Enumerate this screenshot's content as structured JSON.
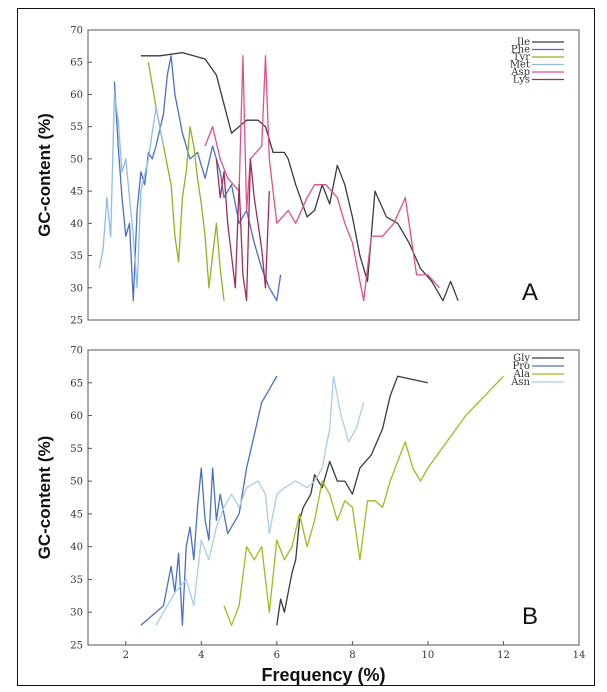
{
  "chart_data": [
    {
      "type": "line",
      "panel_label": "A",
      "ylabel": "GC-content (%)",
      "xlim": [
        1,
        14
      ],
      "ylim": [
        25,
        70
      ],
      "yticks": [
        25,
        30,
        35,
        40,
        45,
        50,
        55,
        60,
        65,
        70
      ],
      "legend_position": "top-right",
      "series": [
        {
          "name": "Ile",
          "color": "#3a3a3a",
          "points": [
            [
              2.4,
              66
            ],
            [
              2.9,
              66
            ],
            [
              3.5,
              66.5
            ],
            [
              4.1,
              65.5
            ],
            [
              4.4,
              63
            ],
            [
              4.8,
              54
            ],
            [
              5.2,
              56
            ],
            [
              5.5,
              56
            ],
            [
              5.7,
              55
            ],
            [
              5.9,
              51
            ],
            [
              6.2,
              51
            ],
            [
              6.3,
              50
            ],
            [
              6.5,
              46
            ],
            [
              6.8,
              41
            ],
            [
              7.0,
              42
            ],
            [
              7.2,
              46
            ],
            [
              7.4,
              43
            ],
            [
              7.6,
              49
            ],
            [
              7.8,
              46
            ],
            [
              8.0,
              41
            ],
            [
              8.2,
              35
            ],
            [
              8.4,
              31
            ],
            [
              8.6,
              45
            ],
            [
              8.9,
              41
            ],
            [
              9.2,
              40
            ],
            [
              9.5,
              37
            ],
            [
              9.8,
              33
            ],
            [
              10.1,
              31
            ],
            [
              10.4,
              28
            ],
            [
              10.6,
              31
            ],
            [
              10.8,
              28
            ]
          ]
        },
        {
          "name": "Phe",
          "color": "#4a6fc7",
          "points": [
            [
              1.7,
              62
            ],
            [
              1.8,
              52
            ],
            [
              1.9,
              44
            ],
            [
              2.0,
              38
            ],
            [
              2.1,
              40
            ],
            [
              2.2,
              28
            ],
            [
              2.3,
              42
            ],
            [
              2.4,
              48
            ],
            [
              2.5,
              46
            ],
            [
              2.6,
              51
            ],
            [
              2.7,
              50
            ],
            [
              2.8,
              52
            ],
            [
              3.0,
              57
            ],
            [
              3.1,
              63
            ],
            [
              3.2,
              66
            ],
            [
              3.3,
              60
            ],
            [
              3.5,
              54
            ],
            [
              3.7,
              50
            ],
            [
              3.9,
              51
            ],
            [
              4.1,
              47
            ],
            [
              4.3,
              52
            ],
            [
              4.5,
              48
            ],
            [
              4.6,
              44
            ],
            [
              4.8,
              46
            ],
            [
              5.0,
              40
            ],
            [
              5.2,
              42
            ],
            [
              5.4,
              37
            ],
            [
              5.6,
              33
            ],
            [
              5.8,
              30
            ],
            [
              6.0,
              28
            ],
            [
              6.1,
              32
            ]
          ]
        },
        {
          "name": "Tyr",
          "color": "#8db51f",
          "points": [
            [
              2.6,
              65
            ],
            [
              2.8,
              58
            ],
            [
              3.0,
              52
            ],
            [
              3.2,
              46
            ],
            [
              3.3,
              38
            ],
            [
              3.4,
              34
            ],
            [
              3.5,
              44
            ],
            [
              3.6,
              48
            ],
            [
              3.7,
              55
            ],
            [
              3.8,
              52
            ],
            [
              3.9,
              47
            ],
            [
              4.0,
              43
            ],
            [
              4.1,
              38
            ],
            [
              4.2,
              30
            ],
            [
              4.3,
              35
            ],
            [
              4.4,
              40
            ],
            [
              4.5,
              33
            ],
            [
              4.6,
              28
            ]
          ]
        },
        {
          "name": "Met",
          "color": "#8fbde8",
          "points": [
            [
              1.3,
              33
            ],
            [
              1.4,
              36
            ],
            [
              1.5,
              44
            ],
            [
              1.6,
              38
            ],
            [
              1.7,
              60
            ],
            [
              1.8,
              56
            ],
            [
              1.9,
              48
            ],
            [
              2.0,
              50
            ],
            [
              2.1,
              44
            ],
            [
              2.2,
              38
            ],
            [
              2.3,
              30
            ],
            [
              2.4,
              45
            ],
            [
              2.6,
              50
            ],
            [
              2.8,
              58
            ],
            [
              3.0,
              52
            ]
          ]
        },
        {
          "name": "Asp",
          "color": "#e0508a",
          "points": [
            [
              4.1,
              52
            ],
            [
              4.3,
              55
            ],
            [
              4.5,
              50
            ],
            [
              4.7,
              47
            ],
            [
              5.0,
              45
            ],
            [
              5.1,
              66
            ],
            [
              5.2,
              42
            ],
            [
              5.3,
              50
            ],
            [
              5.6,
              52
            ],
            [
              5.7,
              66
            ],
            [
              5.8,
              50
            ],
            [
              6.0,
              40
            ],
            [
              6.3,
              42
            ],
            [
              6.5,
              40
            ],
            [
              6.8,
              44
            ],
            [
              7.0,
              46
            ],
            [
              7.3,
              46
            ],
            [
              7.6,
              44
            ],
            [
              7.8,
              40
            ],
            [
              8.0,
              37
            ],
            [
              8.3,
              28
            ],
            [
              8.5,
              38
            ],
            [
              8.8,
              38
            ],
            [
              9.1,
              40
            ],
            [
              9.4,
              44
            ],
            [
              9.7,
              32
            ],
            [
              10.0,
              32
            ],
            [
              10.3,
              30
            ]
          ]
        },
        {
          "name": "Lys",
          "color": "#9b2f55",
          "points": [
            [
              4.4,
              50
            ],
            [
              4.5,
              44
            ],
            [
              4.6,
              48
            ],
            [
              4.7,
              40
            ],
            [
              4.8,
              35
            ],
            [
              4.9,
              30
            ],
            [
              5.0,
              46
            ],
            [
              5.1,
              32
            ],
            [
              5.2,
              28
            ],
            [
              5.3,
              50
            ],
            [
              5.4,
              44
            ],
            [
              5.5,
              40
            ],
            [
              5.6,
              36
            ],
            [
              5.7,
              30
            ],
            [
              5.8,
              45
            ]
          ]
        }
      ]
    },
    {
      "type": "line",
      "panel_label": "B",
      "ylabel": "GC-content (%)",
      "xlabel": "Frequency (%)",
      "xlim": [
        1,
        14
      ],
      "ylim": [
        25,
        70
      ],
      "xticks": [
        2,
        4,
        6,
        8,
        10,
        12,
        14
      ],
      "yticks": [
        25,
        30,
        35,
        40,
        45,
        50,
        55,
        60,
        65,
        70
      ],
      "legend_position": "top-right",
      "series": [
        {
          "name": "Gly",
          "color": "#3a3a3a",
          "points": [
            [
              6.0,
              28
            ],
            [
              6.1,
              32
            ],
            [
              6.2,
              30
            ],
            [
              6.4,
              36
            ],
            [
              6.5,
              38
            ],
            [
              6.6,
              44
            ],
            [
              6.7,
              46
            ],
            [
              6.9,
              48
            ],
            [
              7.0,
              51
            ],
            [
              7.2,
              49
            ],
            [
              7.4,
              53
            ],
            [
              7.6,
              50
            ],
            [
              7.8,
              50
            ],
            [
              8.0,
              48
            ],
            [
              8.2,
              52
            ],
            [
              8.5,
              54
            ],
            [
              8.8,
              58
            ],
            [
              9.0,
              63
            ],
            [
              9.2,
              66
            ],
            [
              9.6,
              65.5
            ],
            [
              10.0,
              65
            ]
          ]
        },
        {
          "name": "Pro",
          "color": "#4a6fc7",
          "points": [
            [
              2.4,
              28
            ],
            [
              2.8,
              30
            ],
            [
              3.0,
              31
            ],
            [
              3.2,
              37
            ],
            [
              3.3,
              33
            ],
            [
              3.4,
              39
            ],
            [
              3.5,
              28
            ],
            [
              3.6,
              40
            ],
            [
              3.7,
              43
            ],
            [
              3.8,
              38
            ],
            [
              3.9,
              46
            ],
            [
              4.0,
              52
            ],
            [
              4.1,
              44
            ],
            [
              4.2,
              41
            ],
            [
              4.3,
              52
            ],
            [
              4.4,
              44
            ],
            [
              4.5,
              48
            ],
            [
              4.7,
              42
            ],
            [
              5.0,
              45
            ],
            [
              5.2,
              52
            ],
            [
              5.4,
              57
            ],
            [
              5.6,
              62
            ],
            [
              5.8,
              64
            ],
            [
              6.0,
              66
            ]
          ]
        },
        {
          "name": "Ala",
          "color": "#a4b820",
          "points": [
            [
              4.6,
              31
            ],
            [
              4.8,
              28
            ],
            [
              5.0,
              31
            ],
            [
              5.2,
              40
            ],
            [
              5.4,
              38
            ],
            [
              5.6,
              40
            ],
            [
              5.8,
              30
            ],
            [
              6.0,
              41
            ],
            [
              6.2,
              38
            ],
            [
              6.4,
              40
            ],
            [
              6.6,
              45
            ],
            [
              6.8,
              40
            ],
            [
              7.0,
              44
            ],
            [
              7.2,
              50
            ],
            [
              7.4,
              48
            ],
            [
              7.6,
              44
            ],
            [
              7.8,
              47
            ],
            [
              8.0,
              46
            ],
            [
              8.2,
              38
            ],
            [
              8.4,
              47
            ],
            [
              8.6,
              47
            ],
            [
              8.8,
              46
            ],
            [
              9.0,
              50
            ],
            [
              9.2,
              53
            ],
            [
              9.4,
              56
            ],
            [
              9.6,
              52
            ],
            [
              9.8,
              50
            ],
            [
              10.0,
              52
            ],
            [
              10.5,
              56
            ],
            [
              11.0,
              60
            ],
            [
              11.5,
              63
            ],
            [
              12.0,
              66
            ]
          ]
        },
        {
          "name": "Asn",
          "color": "#a9cce8",
          "points": [
            [
              2.8,
              28
            ],
            [
              3.0,
              30
            ],
            [
              3.3,
              33
            ],
            [
              3.6,
              35
            ],
            [
              3.8,
              31
            ],
            [
              4.0,
              41
            ],
            [
              4.2,
              38
            ],
            [
              4.4,
              43
            ],
            [
              4.6,
              46
            ],
            [
              4.8,
              48
            ],
            [
              5.0,
              46
            ],
            [
              5.2,
              49
            ],
            [
              5.5,
              50
            ],
            [
              5.7,
              48
            ],
            [
              5.8,
              42
            ],
            [
              6.0,
              48
            ],
            [
              6.2,
              49
            ],
            [
              6.5,
              50
            ],
            [
              6.8,
              49
            ],
            [
              7.0,
              50
            ],
            [
              7.2,
              52
            ],
            [
              7.4,
              58
            ],
            [
              7.5,
              66
            ],
            [
              7.7,
              60
            ],
            [
              7.9,
              56
            ],
            [
              8.1,
              58
            ],
            [
              8.3,
              62
            ]
          ]
        }
      ]
    }
  ]
}
